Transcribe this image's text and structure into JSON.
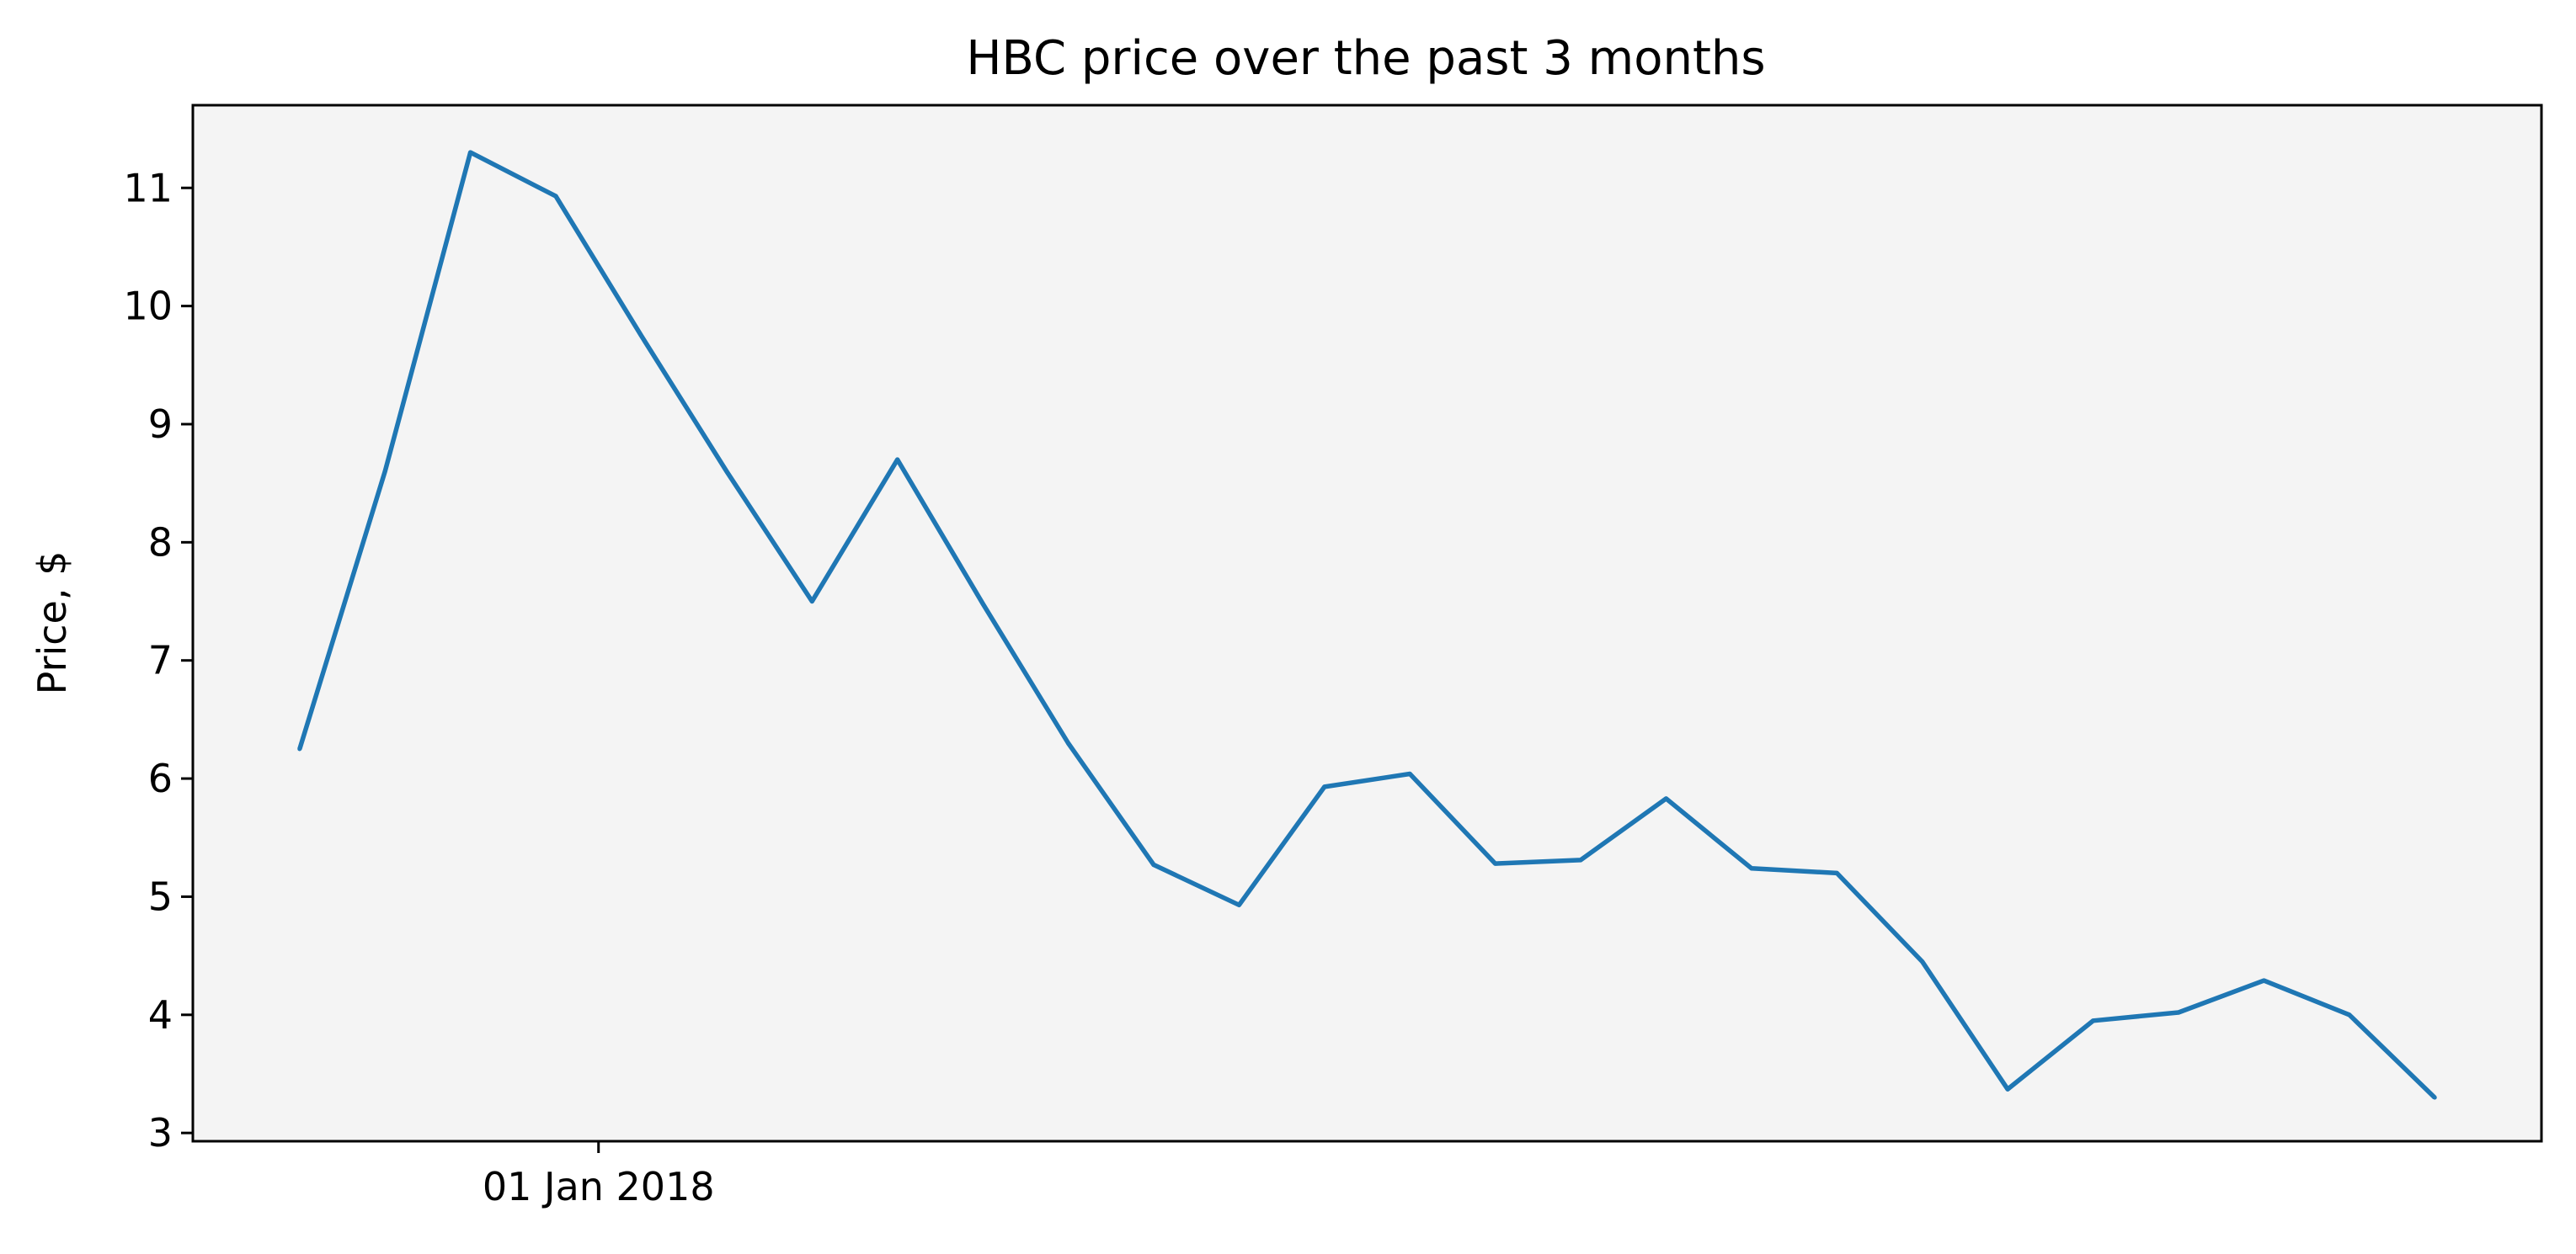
{
  "chart_data": {
    "type": "line",
    "title": "HBC price over the past 3 months",
    "xlabel": "",
    "ylabel": "Price, $",
    "x": [
      "2017-12-18",
      "2017-12-22",
      "2017-12-26",
      "2017-12-30",
      "2018-01-03",
      "2018-01-07",
      "2018-01-11",
      "2018-01-15",
      "2018-01-19",
      "2018-01-23",
      "2018-01-27",
      "2018-01-31",
      "2018-02-04",
      "2018-02-08",
      "2018-02-12",
      "2018-02-16",
      "2018-02-20",
      "2018-02-24",
      "2018-02-28",
      "2018-03-04",
      "2018-03-08",
      "2018-03-12",
      "2018-03-16",
      "2018-03-20",
      "2018-03-24",
      "2018-03-28"
    ],
    "series": [
      {
        "values": [
          6.25,
          8.6,
          11.3,
          10.93,
          9.75,
          8.6,
          7.5,
          8.7,
          7.48,
          6.3,
          5.27,
          4.93,
          5.93,
          6.04,
          5.28,
          5.31,
          5.83,
          5.24,
          5.2,
          4.45,
          3.37,
          3.95,
          4.02,
          4.29,
          4.0,
          3.3
        ],
        "color": "#1f77b4"
      }
    ],
    "xlim": [
      "2017-12-13",
      "2018-04-02"
    ],
    "ylim": [
      2.93,
      11.7
    ],
    "xticks": [
      {
        "value": "2018-01-01",
        "label": "01 Jan 2018"
      }
    ],
    "yticks": [
      3,
      4,
      5,
      6,
      7,
      8,
      9,
      10,
      11
    ],
    "grid": false,
    "legend": "none",
    "plot_background": "#f4f4f4"
  }
}
